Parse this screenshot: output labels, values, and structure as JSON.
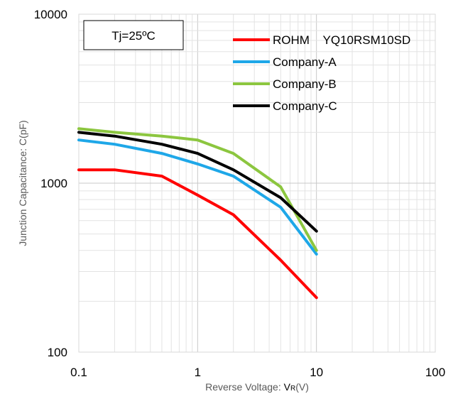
{
  "chart_data": {
    "type": "line",
    "annotation": "Tj=25ºC",
    "xlabel": "Reverse Voltage: ",
    "xlabel_symbol": "V",
    "xlabel_sub": "R",
    "xlabel_unit": "(V)",
    "ylabel": "Junction Capacitance: C(pF)",
    "x_scale": "log",
    "y_scale": "log",
    "xlim": [
      0.1,
      100
    ],
    "ylim": [
      100,
      10000
    ],
    "x_ticks": [
      "0.1",
      "1",
      "10",
      "100"
    ],
    "y_ticks": [
      "10000",
      "1000",
      "100"
    ],
    "grid": "log minor and major",
    "legend_position": "top-right",
    "series": [
      {
        "name": "ROHM    YQ10RSM10SD",
        "color": "#ff0000",
        "x": [
          0.1,
          0.2,
          0.5,
          1,
          2,
          5,
          10
        ],
        "y": [
          1200,
          1200,
          1100,
          850,
          650,
          350,
          210
        ]
      },
      {
        "name": "Company-A",
        "color": "#1ea7e8",
        "x": [
          0.1,
          0.2,
          0.5,
          1,
          2,
          5,
          10
        ],
        "y": [
          1800,
          1700,
          1500,
          1300,
          1100,
          720,
          380
        ]
      },
      {
        "name": "Company-B",
        "color": "#8cc63f",
        "x": [
          0.1,
          0.2,
          0.5,
          1,
          2,
          5,
          10
        ],
        "y": [
          2100,
          2000,
          1900,
          1800,
          1500,
          950,
          400
        ]
      },
      {
        "name": "Company-C",
        "color": "#000000",
        "x": [
          0.1,
          0.2,
          0.5,
          1,
          2,
          5,
          10
        ],
        "y": [
          2000,
          1900,
          1700,
          1500,
          1200,
          820,
          520
        ]
      }
    ]
  }
}
